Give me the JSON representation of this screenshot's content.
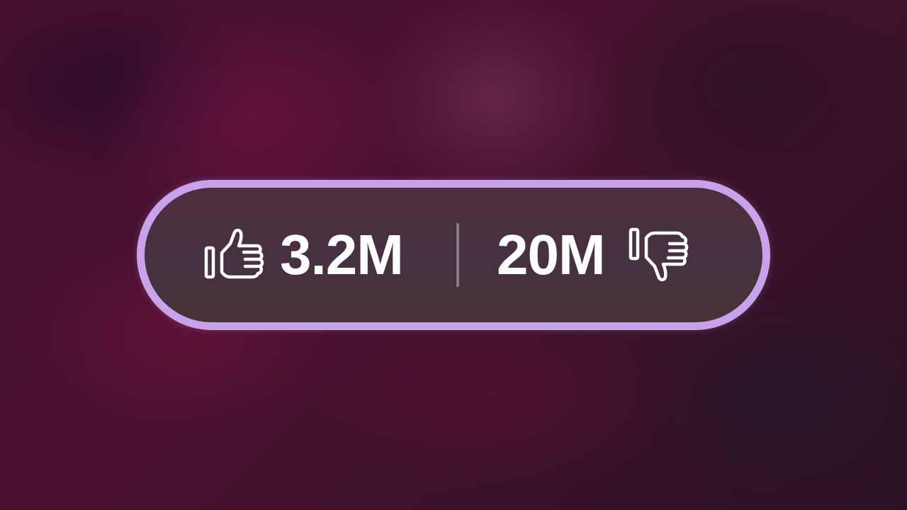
{
  "reaction_bar": {
    "like": {
      "icon": "thumbs-up-icon",
      "count": "3.2M"
    },
    "dislike": {
      "icon": "thumbs-down-icon",
      "count": "20M"
    }
  },
  "colors": {
    "pill_border": "#c9a2ec",
    "pill_fill": "#4a3040",
    "text": "#ffffff",
    "divider": "#8a7a84"
  }
}
